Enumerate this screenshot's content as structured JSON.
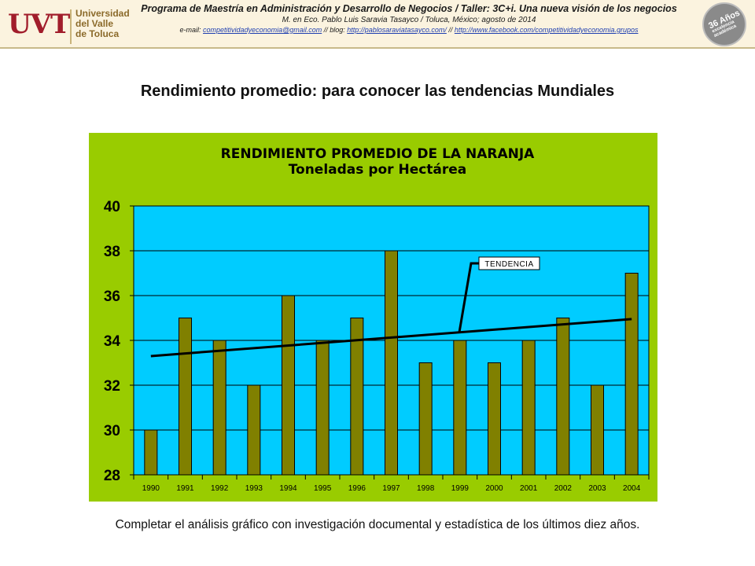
{
  "header": {
    "logo_mark": "UVT",
    "logo_text": "Universidad\ndel Valle\nde Toluca",
    "line1": "Programa de Maestría en Administración y Desarrollo de Negocios / Taller: 3C+i. Una nueva visión de los negocios",
    "line2": "M. en Eco. Pablo Luis Saravia Tasayco / Toluca, México; agosto de 2014",
    "email_prefix": "e-mail: ",
    "email": "competitividadyeconomia@gmail.com",
    "sep1": " // blog: ",
    "blog": "http://pablosaraviatasayco.com/",
    "sep2": " // ",
    "facebook": "http://www.facebook.com/competitividadyeconomia.grupos",
    "badge_main": "36 Años",
    "badge_sub": "excelencia académica"
  },
  "page_title": "Rendimiento promedio: para conocer las tendencias Mundiales",
  "footer": "Completar el análisis gráfico con investigación documental y estadística de los últimos diez años.",
  "colors": {
    "chart_bg": "#99cc00",
    "plot_bg": "#00ccff",
    "bar": "#808000",
    "trend": "#000000"
  },
  "chart_data": {
    "type": "bar",
    "title": "RENDIMIENTO PROMEDIO DE LA NARANJA",
    "subtitle": "Toneladas por Hectárea",
    "categories": [
      "1990",
      "1991",
      "1992",
      "1993",
      "1994",
      "1995",
      "1996",
      "1997",
      "1998",
      "1999",
      "2000",
      "2001",
      "2002",
      "2003",
      "2004"
    ],
    "values": [
      30,
      35,
      34,
      32,
      36,
      34,
      35,
      38,
      33,
      34,
      33,
      34,
      35,
      32,
      37
    ],
    "ylim": [
      28,
      40
    ],
    "yticks": [
      28,
      30,
      32,
      34,
      36,
      38,
      40
    ],
    "grid": true,
    "trendline": {
      "label": "TENDENCIA",
      "start": 33.3,
      "end": 34.95
    }
  }
}
